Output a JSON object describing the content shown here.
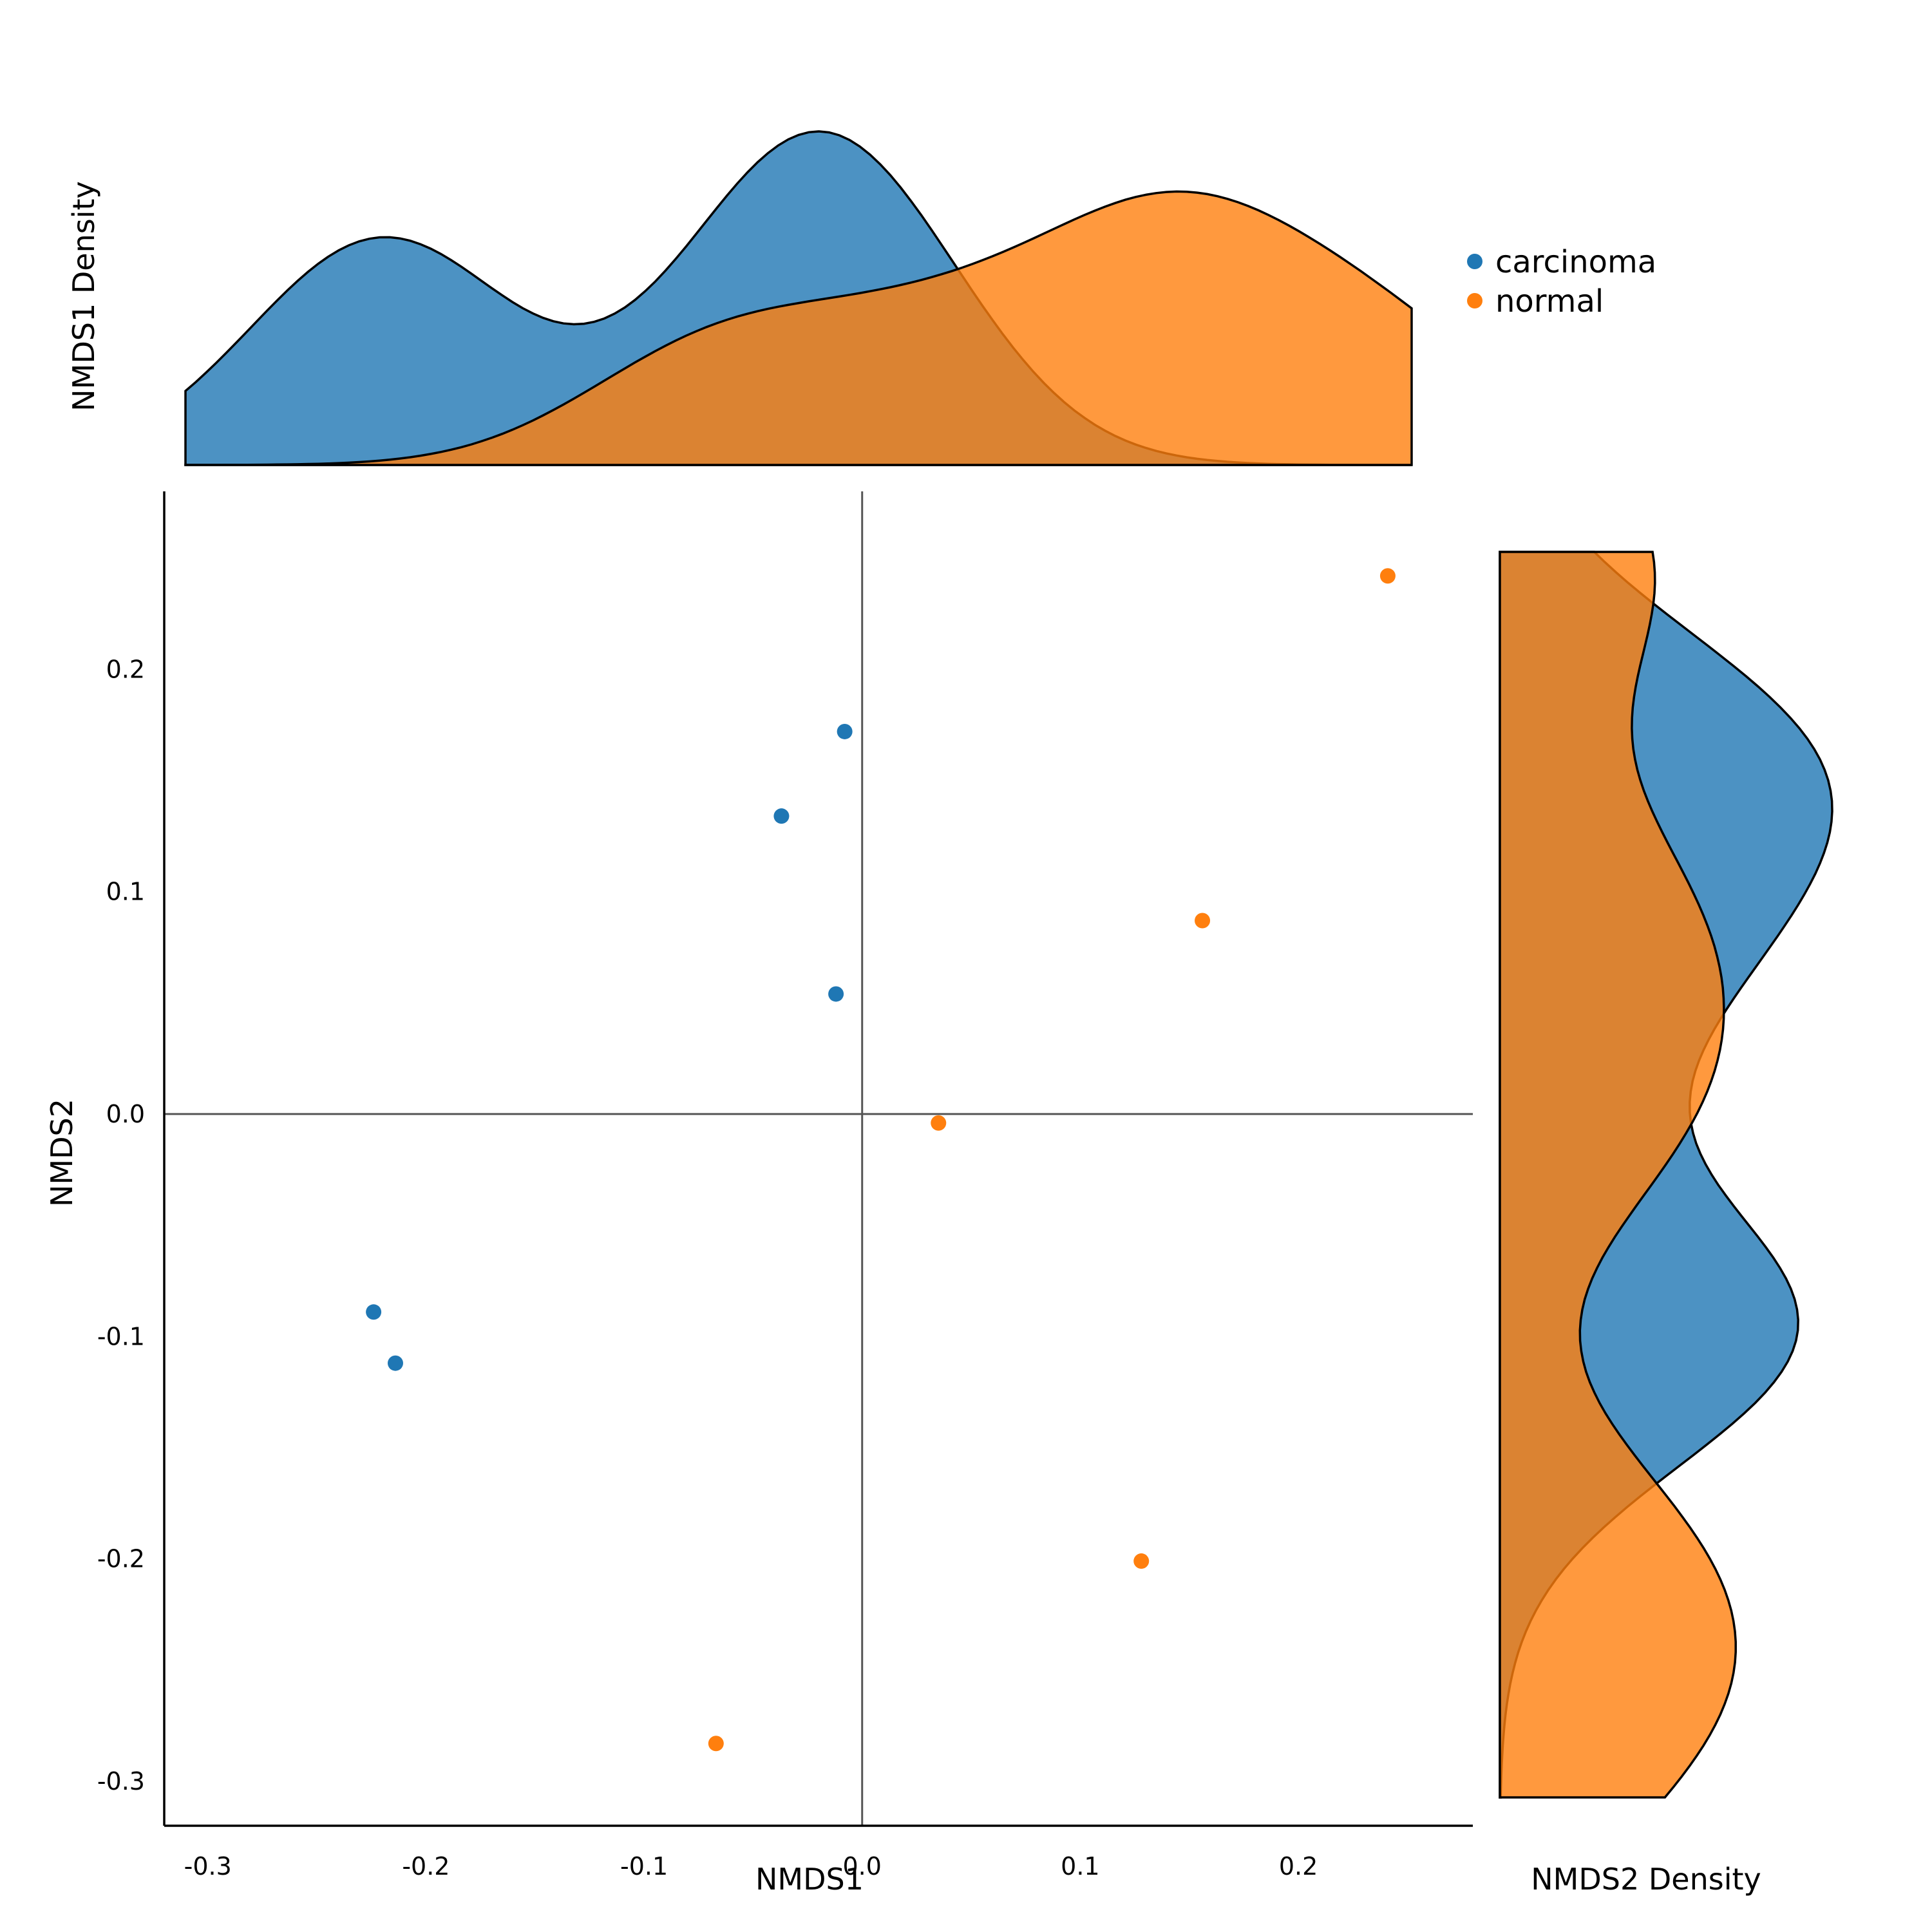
{
  "chart_data": {
    "type": "scatter",
    "title": "",
    "xlabel": "NMDS1",
    "ylabel": "NMDS2",
    "top_density_label": "NMDS1 Density",
    "right_density_label": "NMDS2 Density",
    "xlim": [
      -0.32,
      0.28
    ],
    "ylim": [
      -0.32,
      0.28
    ],
    "x_ticks": [
      -0.3,
      -0.2,
      -0.1,
      0.0,
      0.1,
      0.2
    ],
    "x_tick_labels": [
      "-0.3",
      "-0.2",
      "-0.1",
      "0.0",
      "0.1",
      "0.2"
    ],
    "y_ticks": [
      -0.3,
      -0.2,
      -0.1,
      0.0,
      0.1,
      0.2
    ],
    "y_tick_labels": [
      "-0.3",
      "-0.2",
      "-0.1",
      "0.0",
      "0.1",
      "0.2"
    ],
    "reference_lines": {
      "x": 0.0,
      "y": 0.0
    },
    "grid": false,
    "legend_position": "top-right",
    "series": [
      {
        "name": "carcinoma",
        "color": "#1f77b4",
        "x": [
          -0.008,
          -0.037,
          -0.012,
          -0.224,
          -0.214
        ],
        "y": [
          0.172,
          0.134,
          0.054,
          -0.089,
          -0.112
        ]
      },
      {
        "name": "normal",
        "color": "#ff7f0e",
        "x": [
          0.241,
          0.156,
          0.035,
          0.128,
          -0.067
        ],
        "y": [
          0.242,
          0.087,
          -0.004,
          -0.201,
          -0.283
        ]
      }
    ]
  }
}
